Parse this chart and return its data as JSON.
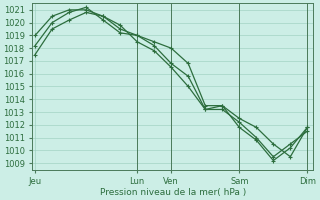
{
  "bg_color": "#cceee6",
  "grid_color": "#99ccbb",
  "line_color": "#2d6e3e",
  "ylabel": "Pression niveau de la mer( hPa )",
  "ylim": [
    1008.5,
    1021.5
  ],
  "yticks": [
    1009,
    1010,
    1011,
    1012,
    1013,
    1014,
    1015,
    1016,
    1017,
    1018,
    1019,
    1020,
    1021
  ],
  "xtick_labels": [
    "Jeu",
    "Lun",
    "Ven",
    "Sam",
    "Dim"
  ],
  "xtick_positions": [
    0,
    72,
    96,
    144,
    192
  ],
  "xlim": [
    -2,
    196
  ],
  "vline_positions": [
    72,
    96,
    144,
    192
  ],
  "series1": {
    "x": [
      0,
      12,
      24,
      36,
      48,
      60,
      72,
      84,
      96,
      108,
      120,
      132,
      144,
      156,
      168,
      180,
      192
    ],
    "y": [
      1017.5,
      1019.5,
      1020.2,
      1020.8,
      1020.5,
      1019.8,
      1018.5,
      1017.8,
      1016.5,
      1015.0,
      1013.2,
      1013.2,
      1012.2,
      1011.0,
      1009.5,
      1010.5,
      1011.5
    ]
  },
  "series2": {
    "x": [
      0,
      12,
      24,
      36,
      48,
      60,
      72,
      84,
      96,
      108,
      120,
      132,
      144,
      156,
      168,
      180,
      192
    ],
    "y": [
      1019.0,
      1020.5,
      1021.0,
      1021.0,
      1020.5,
      1019.5,
      1019.0,
      1018.5,
      1018.0,
      1016.8,
      1013.5,
      1013.5,
      1012.5,
      1011.8,
      1010.5,
      1009.5,
      1011.8
    ]
  },
  "series3": {
    "x": [
      0,
      12,
      24,
      36,
      48,
      60,
      72,
      84,
      96,
      108,
      120,
      132,
      144,
      156,
      168,
      180,
      192
    ],
    "y": [
      1018.2,
      1020.0,
      1020.8,
      1021.2,
      1020.2,
      1019.2,
      1019.0,
      1018.2,
      1016.8,
      1015.8,
      1013.2,
      1013.5,
      1011.8,
      1010.8,
      1009.2,
      1010.2,
      1011.8
    ]
  }
}
